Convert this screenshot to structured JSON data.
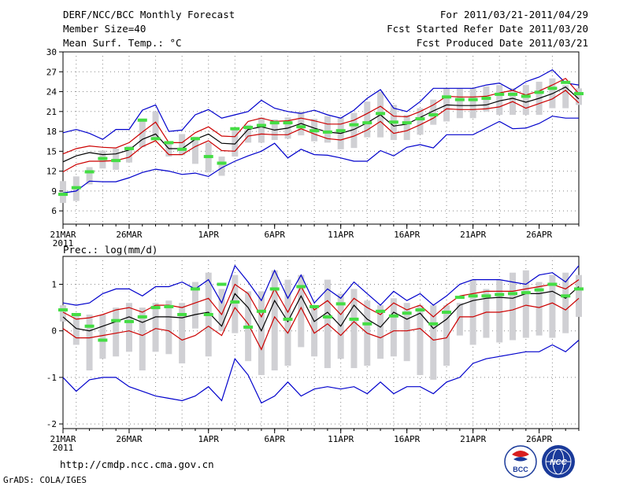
{
  "header": {
    "title": "DERF/NCC/BCC Monthly Forecast",
    "member_size": "Member Size=40",
    "variable": "Mean Surf. Temp.: °C",
    "period": "For 2011/03/21-2011/04/29",
    "started": "Fcst Started Refer Date 2011/03/20",
    "produced": "Fcst Produced Date 2011/03/21"
  },
  "footer": {
    "url": "http://cmdp.ncc.cma.gov.cn",
    "grads": "GrADS: COLA/IGES",
    "logo_bcc": "BCC",
    "logo_ncc": "NCC"
  },
  "colors": {
    "envelope": "#0000cc",
    "band": "#cc0000",
    "mean": "#000000",
    "marker": "#44dd44",
    "box": "#d0d0d4"
  },
  "chart_data": [
    {
      "type": "line",
      "title": "Mean Surf. Temp.: °C",
      "x_start": "2011-03-21",
      "xlim": [
        0,
        39
      ],
      "x_tick_labels": [
        "21MAR",
        "26MAR",
        "1APR",
        "6APR",
        "11APR",
        "16APR",
        "21APR",
        "26APR"
      ],
      "x_tick_days": [
        0,
        5,
        11,
        16,
        21,
        26,
        31,
        36
      ],
      "year_label": "2011",
      "ylim": [
        4,
        30
      ],
      "y_ticks": [
        6,
        9,
        12,
        15,
        18,
        21,
        24,
        27,
        30
      ],
      "y_tick_labels": [
        "6",
        "9",
        "12",
        "15",
        "18",
        "21",
        "24",
        "27",
        "30"
      ],
      "x": [
        0,
        1,
        2,
        3,
        4,
        5,
        6,
        7,
        8,
        9,
        10,
        11,
        12,
        13,
        14,
        15,
        16,
        17,
        18,
        19,
        20,
        21,
        22,
        23,
        24,
        25,
        26,
        27,
        28,
        29,
        30,
        31,
        32,
        33,
        34,
        35,
        36,
        37,
        38,
        39
      ],
      "series": [
        {
          "name": "max",
          "values": [
            17.8,
            18.3,
            17.7,
            16.8,
            18.3,
            18.3,
            21.2,
            22.0,
            18.0,
            18.2,
            20.5,
            21.3,
            20.0,
            20.5,
            21.0,
            22.7,
            21.5,
            21.0,
            20.7,
            21.2,
            20.5,
            20.0,
            21.2,
            23.0,
            24.3,
            21.5,
            21.0,
            22.5,
            24.5,
            24.5,
            24.5,
            24.5,
            25.0,
            25.3,
            24.2,
            25.5,
            26.2,
            27.3,
            25.3,
            25.0
          ]
        },
        {
          "name": "mean_plus_sd",
          "values": [
            14.6,
            15.4,
            15.8,
            15.6,
            15.5,
            16.3,
            17.9,
            19.4,
            16.3,
            16.3,
            17.8,
            18.7,
            17.3,
            17.2,
            19.5,
            20.0,
            19.5,
            19.6,
            20.0,
            19.6,
            19.1,
            19.1,
            19.7,
            20.7,
            21.8,
            20.3,
            20.2,
            21.0,
            22.0,
            23.3,
            23.2,
            23.2,
            23.3,
            23.8,
            24.2,
            23.5,
            24.1,
            25.0,
            26.0,
            23.7
          ]
        },
        {
          "name": "mean",
          "values": [
            13.4,
            14.3,
            14.8,
            14.5,
            14.6,
            15.2,
            16.8,
            17.6,
            15.4,
            15.4,
            16.8,
            17.6,
            16.2,
            16.1,
            18.3,
            18.7,
            18.2,
            18.5,
            19.2,
            18.5,
            17.9,
            17.7,
            18.3,
            19.3,
            20.5,
            18.8,
            19.1,
            20.1,
            21.1,
            22.0,
            21.9,
            21.9,
            22.0,
            22.6,
            23.0,
            22.4,
            23.0,
            23.7,
            24.7,
            22.9
          ]
        },
        {
          "name": "mean_minus_sd",
          "values": [
            11.9,
            13.0,
            13.5,
            13.5,
            13.6,
            14.1,
            15.7,
            16.6,
            14.5,
            14.5,
            15.7,
            16.6,
            15.1,
            15.0,
            17.3,
            17.6,
            17.5,
            17.5,
            18.4,
            17.6,
            16.9,
            16.7,
            17.3,
            18.2,
            19.5,
            17.7,
            18.1,
            19.0,
            20.0,
            21.4,
            21.3,
            21.3,
            21.4,
            21.7,
            22.5,
            21.5,
            22.2,
            22.9,
            24.2,
            22.3
          ]
        },
        {
          "name": "min",
          "values": [
            8.7,
            9.0,
            10.5,
            10.4,
            10.4,
            11.0,
            11.8,
            12.3,
            12.0,
            11.5,
            11.7,
            11.2,
            12.5,
            13.5,
            14.3,
            15.0,
            16.2,
            14.0,
            15.3,
            14.5,
            14.4,
            14.0,
            13.5,
            13.5,
            15.1,
            14.3,
            15.6,
            16.0,
            15.5,
            17.5,
            17.5,
            17.5,
            18.5,
            19.5,
            18.4,
            18.5,
            19.2,
            20.3,
            20.0,
            20.0
          ]
        },
        {
          "name": "ensemble_box_top",
          "values": [
            10.5,
            11.2,
            12.6,
            15.1,
            15.4,
            15.8,
            19.8,
            21.0,
            16.5,
            17.6,
            17.2,
            16.3,
            14.2,
            18.5,
            19.0,
            20.1,
            19.8,
            20.1,
            21.0,
            19.9,
            20.3,
            20.1,
            20.8,
            22.5,
            24.0,
            22.0,
            20.5,
            21.5,
            22.8,
            24.5,
            24.5,
            24.5,
            24.8,
            25.0,
            24.5,
            25.0,
            25.5,
            26.0,
            25.0,
            24.5
          ]
        },
        {
          "name": "ensemble_box_bottom",
          "values": [
            7.2,
            7.5,
            10.0,
            12.4,
            12.2,
            13.3,
            15.6,
            16.9,
            14.2,
            14.4,
            13.1,
            11.8,
            11.3,
            14.2,
            16.3,
            16.3,
            16.7,
            16.9,
            17.4,
            16.5,
            16.3,
            15.3,
            15.5,
            17.1,
            17.1,
            16.7,
            16.7,
            17.5,
            19.0,
            19.5,
            20.0,
            20.0,
            21.0,
            20.5,
            20.5,
            20.5,
            20.5,
            21.5,
            21.5,
            22.0
          ]
        },
        {
          "name": "median_marker",
          "values": [
            8.5,
            9.5,
            11.9,
            13.9,
            13.6,
            15.4,
            19.7,
            16.9,
            16.3,
            15.3,
            16.9,
            14.2,
            13.2,
            18.4,
            18.6,
            18.9,
            19.3,
            19.3,
            18.7,
            18.1,
            17.9,
            18.1,
            19.0,
            19.3,
            20.7,
            19.4,
            19.3,
            19.9,
            20.5,
            23.2,
            22.8,
            22.8,
            23.0,
            23.6,
            23.6,
            23.3,
            23.9,
            24.5,
            25.4,
            23.7
          ]
        }
      ]
    },
    {
      "type": "line",
      "title": "Prec.: log(mm/d)",
      "x_start": "2011-03-21",
      "xlim": [
        0,
        39
      ],
      "x_tick_labels": [
        "21MAR",
        "26MAR",
        "1APR",
        "6APR",
        "11APR",
        "16APR",
        "21APR",
        "26APR"
      ],
      "x_tick_days": [
        0,
        5,
        11,
        16,
        21,
        26,
        31,
        36
      ],
      "year_label": "2011",
      "ylim": [
        -2.1,
        1.6
      ],
      "y_ticks": [
        -2,
        -1,
        0,
        1
      ],
      "y_tick_labels": [
        "-2",
        "-1",
        "0",
        "1"
      ],
      "x": [
        0,
        1,
        2,
        3,
        4,
        5,
        6,
        7,
        8,
        9,
        10,
        11,
        12,
        13,
        14,
        15,
        16,
        17,
        18,
        19,
        20,
        21,
        22,
        23,
        24,
        25,
        26,
        27,
        28,
        29,
        30,
        31,
        32,
        33,
        34,
        35,
        36,
        37,
        38,
        39
      ],
      "series": [
        {
          "name": "max",
          "values": [
            0.6,
            0.55,
            0.6,
            0.8,
            0.9,
            0.9,
            0.75,
            0.95,
            0.95,
            1.05,
            0.9,
            1.1,
            0.6,
            1.4,
            1.05,
            0.65,
            1.3,
            0.7,
            1.2,
            0.6,
            0.9,
            0.7,
            1.05,
            0.8,
            0.55,
            0.85,
            0.65,
            0.8,
            0.55,
            0.75,
            1.0,
            1.1,
            1.1,
            1.1,
            1.05,
            1.0,
            1.2,
            1.25,
            1.05,
            1.4
          ]
        },
        {
          "name": "mean_plus_sd",
          "values": [
            0.4,
            0.25,
            0.28,
            0.35,
            0.45,
            0.5,
            0.4,
            0.55,
            0.55,
            0.5,
            0.6,
            0.7,
            0.35,
            1.0,
            0.8,
            0.3,
            0.9,
            0.4,
            0.95,
            0.45,
            0.65,
            0.35,
            0.7,
            0.5,
            0.35,
            0.6,
            0.45,
            0.55,
            0.3,
            0.55,
            0.75,
            0.8,
            0.85,
            0.85,
            0.85,
            0.9,
            0.95,
            1.0,
            0.9,
            1.1
          ]
        },
        {
          "name": "mean",
          "values": [
            0.3,
            0.05,
            0.0,
            0.1,
            0.2,
            0.3,
            0.18,
            0.3,
            0.3,
            0.28,
            0.35,
            0.4,
            0.1,
            0.8,
            0.5,
            0.0,
            0.65,
            0.2,
            0.75,
            0.2,
            0.4,
            0.1,
            0.55,
            0.25,
            0.08,
            0.4,
            0.25,
            0.38,
            0.05,
            0.25,
            0.55,
            0.65,
            0.7,
            0.72,
            0.7,
            0.8,
            0.8,
            0.85,
            0.7,
            0.95
          ]
        },
        {
          "name": "mean_minus_sd",
          "values": [
            0.05,
            -0.15,
            -0.15,
            -0.1,
            -0.05,
            0.0,
            -0.1,
            0.05,
            0.0,
            -0.2,
            -0.1,
            0.1,
            -0.1,
            0.5,
            0.15,
            -0.4,
            0.3,
            -0.05,
            0.5,
            -0.05,
            0.15,
            -0.1,
            0.2,
            -0.05,
            -0.15,
            0.0,
            0.0,
            0.05,
            -0.2,
            -0.15,
            0.3,
            0.3,
            0.4,
            0.4,
            0.45,
            0.55,
            0.5,
            0.6,
            0.45,
            0.7
          ]
        },
        {
          "name": "min",
          "values": [
            -1.0,
            -1.3,
            -1.05,
            -1.0,
            -1.0,
            -1.2,
            -1.3,
            -1.4,
            -1.45,
            -1.5,
            -1.4,
            -1.2,
            -1.5,
            -0.6,
            -0.95,
            -1.55,
            -1.4,
            -1.1,
            -1.4,
            -1.25,
            -1.2,
            -1.25,
            -1.2,
            -1.35,
            -1.1,
            -1.35,
            -1.2,
            -1.2,
            -1.35,
            -1.1,
            -1.0,
            -0.7,
            -0.6,
            -0.55,
            -0.5,
            -0.45,
            -0.45,
            -0.3,
            -0.45,
            -0.2
          ]
        },
        {
          "name": "ensemble_box_top",
          "values": [
            0.55,
            0.35,
            0.35,
            0.35,
            0.5,
            0.6,
            0.5,
            0.6,
            0.65,
            0.6,
            1.05,
            1.25,
            0.9,
            1.2,
            0.85,
            0.85,
            1.3,
            1.1,
            1.2,
            0.5,
            1.1,
            0.8,
            0.9,
            0.65,
            0.55,
            0.7,
            0.6,
            0.55,
            0.55,
            0.55,
            0.6,
            1.1,
            0.9,
            1.1,
            1.25,
            1.3,
            1.05,
            1.2,
            1.25,
            1.2
          ]
        },
        {
          "name": "ensemble_box_bottom",
          "values": [
            0.2,
            -0.3,
            -0.85,
            -0.6,
            -0.55,
            -0.45,
            -0.85,
            -0.45,
            -0.5,
            -0.7,
            0.05,
            -0.55,
            0.0,
            -0.05,
            -0.65,
            -0.95,
            -0.85,
            -0.75,
            -0.35,
            -0.55,
            -0.8,
            -0.6,
            -0.8,
            -0.75,
            -0.6,
            -0.55,
            -0.65,
            -0.95,
            -1.05,
            -0.75,
            -0.1,
            -0.3,
            -0.15,
            -0.25,
            -0.2,
            -0.15,
            -0.1,
            -0.15,
            -0.05,
            0.3
          ]
        },
        {
          "name": "median_marker",
          "values": [
            0.45,
            0.35,
            0.1,
            -0.2,
            0.22,
            0.2,
            0.3,
            0.5,
            0.52,
            0.35,
            0.9,
            0.35,
            1.0,
            0.62,
            0.08,
            0.42,
            0.9,
            0.25,
            0.95,
            0.52,
            0.3,
            0.58,
            0.25,
            0.15,
            0.42,
            0.32,
            0.38,
            0.45,
            0.15,
            0.4,
            0.72,
            0.75,
            0.75,
            0.78,
            0.8,
            0.82,
            0.88,
            1.0,
            0.75,
            0.9
          ]
        }
      ]
    }
  ]
}
